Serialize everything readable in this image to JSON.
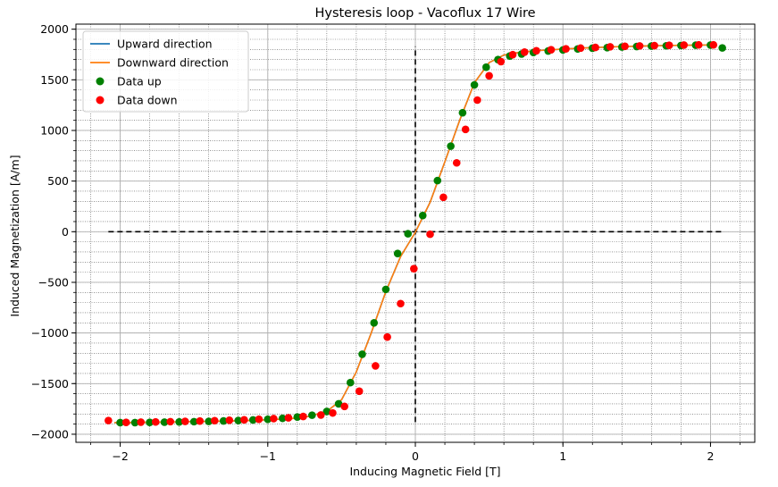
{
  "chart_data": {
    "type": "line",
    "title": "Hysteresis loop - Vacoflux 17 Wire",
    "xlabel": "Inducing Magnetic Field [T]",
    "ylabel": "Induced Magnetization [A/m]",
    "xlim": [
      -2.3,
      2.3
    ],
    "ylim": [
      -2080,
      2050
    ],
    "xticks": [
      -2,
      -1,
      0,
      1,
      2
    ],
    "xtick_labels": [
      "−2",
      "−1",
      "0",
      "1",
      "2"
    ],
    "yticks": [
      -2000,
      -1500,
      -1000,
      -500,
      0,
      500,
      1000,
      1500,
      2000
    ],
    "ytick_labels": [
      "−2000",
      "−1500",
      "−1000",
      "−500",
      "0",
      "500",
      "1000",
      "1500",
      "2000"
    ],
    "grid": true,
    "minor_grid": true,
    "legend_position": "top-left",
    "reference_lines": {
      "horizontal": {
        "y": 0,
        "x_range": [
          -2.08,
          2.08
        ]
      },
      "vertical": {
        "x": 0,
        "y_range": [
          -1880,
          1830
        ]
      }
    },
    "series": [
      {
        "name": "Upward direction",
        "kind": "line",
        "color": "#1f77b4",
        "x": [
          -2.04,
          -1.92,
          -1.8,
          -1.68,
          -1.56,
          -1.44,
          -1.32,
          -1.2,
          -1.08,
          -0.96,
          -0.84,
          -0.72,
          -0.6,
          -0.5,
          -0.4,
          -0.3,
          -0.2,
          -0.1,
          0.0,
          0.1,
          0.2,
          0.3,
          0.4,
          0.5,
          0.6,
          0.72,
          0.84,
          0.96,
          1.08,
          1.2,
          1.32,
          1.44,
          1.56,
          1.68,
          1.8,
          1.92,
          2.04
        ],
        "y": [
          -1885,
          -1884,
          -1882,
          -1880,
          -1877,
          -1874,
          -1871,
          -1867,
          -1862,
          -1855,
          -1845,
          -1823,
          -1775,
          -1660,
          -1385,
          -1005,
          -590,
          -245,
          -5,
          290,
          690,
          1100,
          1470,
          1670,
          1745,
          1775,
          1790,
          1800,
          1810,
          1818,
          1825,
          1830,
          1835,
          1838,
          1841,
          1843,
          1845
        ]
      },
      {
        "name": "Downward direction",
        "kind": "line",
        "color": "#ff7f0e",
        "x": [
          2.04,
          1.92,
          1.8,
          1.68,
          1.56,
          1.44,
          1.32,
          1.2,
          1.08,
          0.96,
          0.84,
          0.72,
          0.6,
          0.5,
          0.4,
          0.3,
          0.2,
          0.1,
          0.0,
          -0.1,
          -0.2,
          -0.3,
          -0.4,
          -0.5,
          -0.6,
          -0.72,
          -0.84,
          -0.96,
          -1.08,
          -1.2,
          -1.32,
          -1.44,
          -1.56,
          -1.68,
          -1.8,
          -1.92,
          -2.04
        ],
        "y": [
          1845,
          1843,
          1841,
          1838,
          1835,
          1830,
          1825,
          1818,
          1810,
          1800,
          1790,
          1775,
          1745,
          1670,
          1470,
          1100,
          690,
          290,
          -5,
          -245,
          -590,
          -1005,
          -1385,
          -1660,
          -1775,
          -1823,
          -1845,
          -1855,
          -1862,
          -1867,
          -1871,
          -1874,
          -1877,
          -1880,
          -1882,
          -1884,
          -1885
        ]
      },
      {
        "name": "Data up",
        "kind": "scatter",
        "color": "#008000",
        "x": [
          -2.0,
          -1.9,
          -1.8,
          -1.7,
          -1.6,
          -1.5,
          -1.4,
          -1.3,
          -1.2,
          -1.1,
          -1.0,
          -0.9,
          -0.8,
          -0.7,
          -0.6,
          -0.52,
          -0.44,
          -0.36,
          -0.28,
          -0.2,
          -0.12,
          -0.05,
          0.05,
          0.15,
          0.24,
          0.32,
          0.4,
          0.48,
          0.56,
          0.64,
          0.72,
          0.8,
          0.9,
          1.0,
          1.1,
          1.2,
          1.3,
          1.4,
          1.5,
          1.6,
          1.7,
          1.8,
          1.9,
          2.0,
          2.08
        ],
        "y": [
          -1885,
          -1885,
          -1883,
          -1881,
          -1879,
          -1876,
          -1873,
          -1869,
          -1864,
          -1859,
          -1852,
          -1843,
          -1830,
          -1812,
          -1775,
          -1700,
          -1490,
          -1210,
          -900,
          -570,
          -215,
          -20,
          160,
          505,
          845,
          1175,
          1450,
          1625,
          1700,
          1735,
          1755,
          1770,
          1785,
          1795,
          1805,
          1812,
          1818,
          1824,
          1829,
          1833,
          1836,
          1839,
          1842,
          1843,
          1815
        ]
      },
      {
        "name": "Data down",
        "kind": "scatter",
        "color": "#ff0000",
        "x": [
          2.02,
          1.92,
          1.82,
          1.72,
          1.62,
          1.52,
          1.42,
          1.32,
          1.22,
          1.12,
          1.02,
          0.92,
          0.82,
          0.74,
          0.66,
          0.58,
          0.5,
          0.42,
          0.34,
          0.28,
          0.19,
          0.1,
          -0.01,
          -0.1,
          -0.19,
          -0.27,
          -0.38,
          -0.48,
          -0.56,
          -0.64,
          -0.76,
          -0.86,
          -0.96,
          -1.06,
          -1.16,
          -1.26,
          -1.36,
          -1.46,
          -1.56,
          -1.66,
          -1.76,
          -1.86,
          -1.96,
          -2.08
        ],
        "y": [
          1845,
          1845,
          1843,
          1841,
          1838,
          1835,
          1831,
          1826,
          1820,
          1813,
          1806,
          1797,
          1787,
          1774,
          1748,
          1680,
          1540,
          1300,
          1010,
          680,
          340,
          -25,
          -365,
          -710,
          -1040,
          -1325,
          -1575,
          -1725,
          -1790,
          -1810,
          -1825,
          -1838,
          -1846,
          -1852,
          -1858,
          -1862,
          -1866,
          -1870,
          -1873,
          -1876,
          -1879,
          -1881,
          -1883,
          -1865
        ]
      }
    ]
  }
}
